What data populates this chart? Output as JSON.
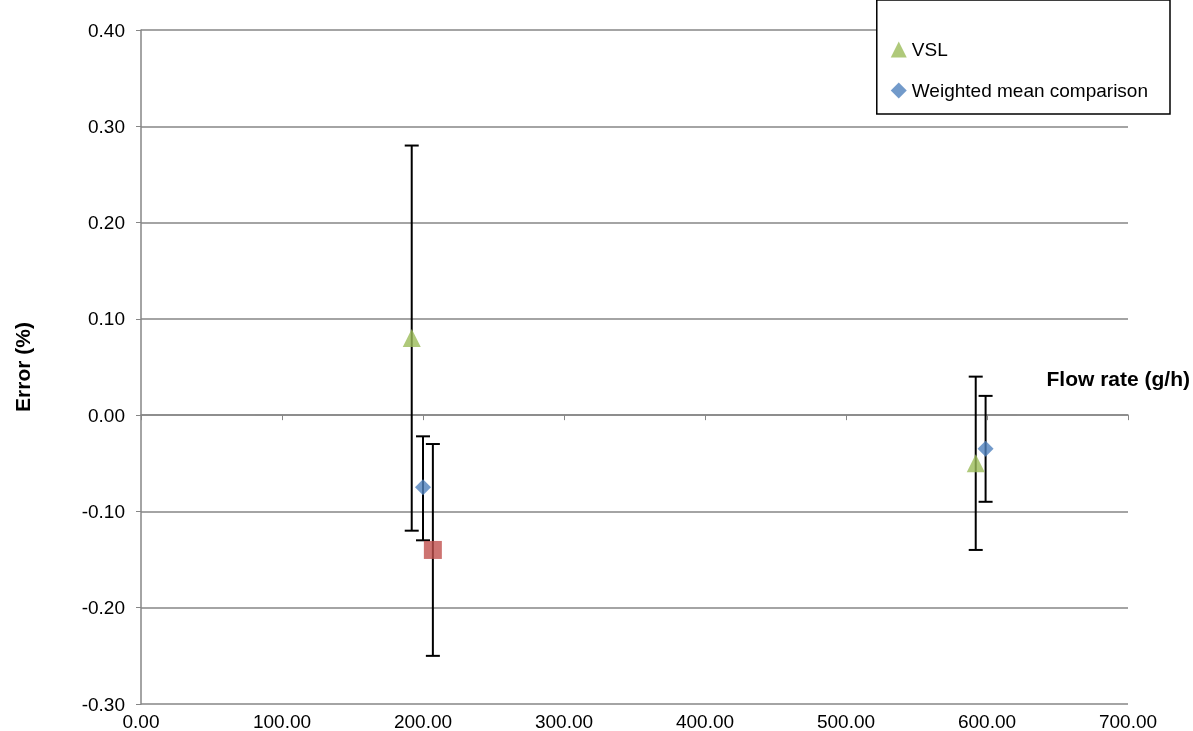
{
  "chart_data": {
    "type": "scatter",
    "xlabel": "Flow rate (g/h)",
    "ylabel": "Error (%)",
    "series": [
      {
        "color": "#c0504d",
        "marker": "square",
        "x": [
          207
        ],
        "values": [
          -0.14
        ],
        "errors": [
          [
            -0.25,
            -0.03
          ]
        ]
      },
      {
        "name": "VSL",
        "color": "#9bbb59",
        "marker": "triangle",
        "x": [
          192,
          592
        ],
        "values": [
          0.08,
          -0.05
        ],
        "errors": [
          [
            -0.12,
            0.28
          ],
          [
            -0.14,
            0.04
          ]
        ]
      },
      {
        "name": "Weighted mean comparison",
        "color": "#4f81bd",
        "marker": "diamond",
        "x": [
          200,
          599
        ],
        "values": [
          -0.075,
          -0.035
        ],
        "errors": [
          [
            -0.13,
            -0.022
          ],
          [
            -0.09,
            0.02
          ]
        ]
      }
    ],
    "xlim": [
      0,
      700
    ],
    "xticks": [
      {
        "value": 0,
        "label": "0.00"
      },
      {
        "value": 100,
        "label": "100.00"
      },
      {
        "value": 200,
        "label": "200.00"
      },
      {
        "value": 300,
        "label": "300.00"
      },
      {
        "value": 400,
        "label": "400.00"
      },
      {
        "value": 500,
        "label": "500.00"
      },
      {
        "value": 600,
        "label": "600.00"
      },
      {
        "value": 700,
        "label": "700.00"
      }
    ],
    "ylim": [
      -0.3,
      0.4
    ],
    "yticks": [
      {
        "value": -0.3,
        "label": "-0.30"
      },
      {
        "value": -0.2,
        "label": "-0.20"
      },
      {
        "value": -0.1,
        "label": "-0.10"
      },
      {
        "value": 0,
        "label": "0.00"
      },
      {
        "value": 0.1,
        "label": "0.10"
      },
      {
        "value": 0.2,
        "label": "0.20"
      },
      {
        "value": 0.3,
        "label": "0.30"
      },
      {
        "value": 0.4,
        "label": "0.40"
      }
    ],
    "grid": "y",
    "legend": "top right"
  }
}
